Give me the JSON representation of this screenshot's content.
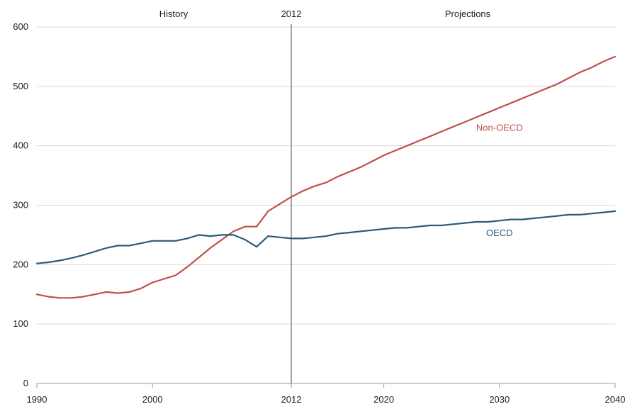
{
  "chart_data": {
    "type": "line",
    "title": "",
    "xlabel": "",
    "ylabel": "",
    "xlim": [
      1990,
      2040
    ],
    "ylim": [
      0,
      600
    ],
    "x_ticks": [
      1990,
      2000,
      2012,
      2020,
      2030,
      2040
    ],
    "y_ticks": [
      0,
      100,
      200,
      300,
      400,
      500,
      600
    ],
    "grid": true,
    "divider_year": 2012,
    "region_labels": {
      "left": "History",
      "center": "2012",
      "right": "Projections"
    },
    "series": [
      {
        "name": "Non-OECD",
        "color": "#c0504d",
        "x": [
          1990,
          1991,
          1992,
          1993,
          1994,
          1995,
          1996,
          1997,
          1998,
          1999,
          2000,
          2001,
          2002,
          2003,
          2004,
          2005,
          2006,
          2007,
          2008,
          2009,
          2010,
          2011,
          2012,
          2013,
          2014,
          2015,
          2016,
          2017,
          2018,
          2019,
          2020,
          2021,
          2022,
          2023,
          2024,
          2025,
          2026,
          2027,
          2028,
          2029,
          2030,
          2031,
          2032,
          2033,
          2034,
          2035,
          2036,
          2037,
          2038,
          2039,
          2040
        ],
        "y": [
          150,
          146,
          144,
          144,
          146,
          150,
          154,
          152,
          154,
          160,
          170,
          176,
          182,
          196,
          212,
          228,
          242,
          256,
          264,
          264,
          290,
          302,
          314,
          324,
          332,
          338,
          348,
          356,
          364,
          374,
          384,
          392,
          400,
          408,
          416,
          424,
          432,
          440,
          448,
          456,
          464,
          472,
          480,
          488,
          496,
          504,
          514,
          524,
          532,
          542,
          550
        ]
      },
      {
        "name": "OECD",
        "color": "#2e5a7a",
        "x": [
          1990,
          1991,
          1992,
          1993,
          1994,
          1995,
          1996,
          1997,
          1998,
          1999,
          2000,
          2001,
          2002,
          2003,
          2004,
          2005,
          2006,
          2007,
          2008,
          2009,
          2010,
          2011,
          2012,
          2013,
          2014,
          2015,
          2016,
          2017,
          2018,
          2019,
          2020,
          2021,
          2022,
          2023,
          2024,
          2025,
          2026,
          2027,
          2028,
          2029,
          2030,
          2031,
          2032,
          2033,
          2034,
          2035,
          2036,
          2037,
          2038,
          2039,
          2040
        ],
        "y": [
          202,
          204,
          207,
          211,
          216,
          222,
          228,
          232,
          232,
          236,
          240,
          240,
          240,
          244,
          250,
          248,
          250,
          250,
          242,
          230,
          248,
          246,
          244,
          244,
          246,
          248,
          252,
          254,
          256,
          258,
          260,
          262,
          262,
          264,
          266,
          266,
          268,
          270,
          272,
          272,
          274,
          276,
          276,
          278,
          280,
          282,
          284,
          284,
          286,
          288,
          290
        ]
      }
    ]
  }
}
